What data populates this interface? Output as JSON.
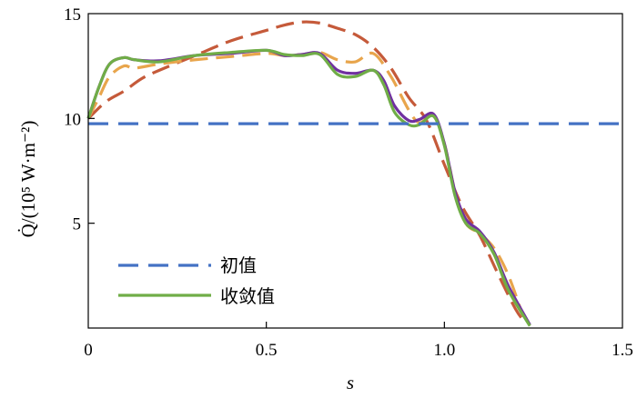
{
  "chart_data": {
    "type": "line",
    "xlabel": "s",
    "ylabel": "Q̇/(10⁵ W·m⁻²)",
    "xlim": [
      0,
      1.5
    ],
    "ylim": [
      0,
      15
    ],
    "xticks": [
      "0",
      "0.5",
      "1.0",
      "1.5"
    ],
    "yticks": [
      "5",
      "10",
      "15"
    ],
    "grid": false,
    "legend_position": "bottom-left",
    "legend": [
      "初值",
      "收敛值"
    ],
    "series": [
      {
        "name": "初值",
        "color": "#4472C4",
        "dash": "dashed",
        "x": [
          0,
          1.5
        ],
        "y": [
          9.75,
          9.75
        ]
      },
      {
        "color": "#C55A3A",
        "dash": "dashed",
        "x": [
          0.0,
          0.05,
          0.1,
          0.15,
          0.2,
          0.3,
          0.4,
          0.5,
          0.55,
          0.6,
          0.65,
          0.7,
          0.75,
          0.8,
          0.85,
          0.9,
          0.95,
          1.0,
          1.05,
          1.1,
          1.15,
          1.2,
          1.23
        ],
        "y": [
          10.0,
          10.8,
          11.3,
          11.9,
          12.3,
          13.0,
          13.7,
          14.2,
          14.45,
          14.6,
          14.55,
          14.3,
          14.0,
          13.4,
          12.4,
          11.0,
          9.9,
          7.8,
          5.8,
          4.4,
          2.6,
          0.9,
          0.2
        ]
      },
      {
        "color": "#E8A54C",
        "dash": "dashed",
        "x": [
          0.0,
          0.03,
          0.06,
          0.1,
          0.13,
          0.2,
          0.3,
          0.4,
          0.5,
          0.55,
          0.6,
          0.65,
          0.7,
          0.75,
          0.8,
          0.85,
          0.9,
          0.93,
          0.97,
          1.0,
          1.03,
          1.06,
          1.1,
          1.14,
          1.18,
          1.22
        ],
        "y": [
          10.0,
          11.0,
          12.0,
          12.5,
          12.4,
          12.6,
          12.8,
          12.95,
          13.1,
          13.0,
          13.05,
          13.15,
          12.8,
          12.7,
          13.1,
          12.0,
          10.4,
          9.8,
          10.1,
          8.8,
          6.5,
          5.0,
          4.5,
          3.8,
          2.5,
          0.6
        ]
      },
      {
        "color": "#7030A0",
        "dash": "solid",
        "x": [
          0.0,
          0.03,
          0.06,
          0.1,
          0.13,
          0.2,
          0.3,
          0.4,
          0.5,
          0.55,
          0.6,
          0.65,
          0.7,
          0.75,
          0.8,
          0.83,
          0.86,
          0.9,
          0.93,
          0.97,
          1.0,
          1.03,
          1.06,
          1.1,
          1.14,
          1.18,
          1.24
        ],
        "y": [
          10.0,
          11.5,
          12.6,
          12.9,
          12.8,
          12.75,
          13.0,
          13.1,
          13.25,
          13.0,
          13.05,
          13.1,
          12.3,
          12.15,
          12.3,
          11.8,
          10.6,
          9.9,
          9.95,
          10.2,
          8.8,
          6.5,
          5.2,
          4.6,
          3.6,
          2.0,
          0.15
        ]
      },
      {
        "name": "收敛值",
        "color": "#70AD47",
        "dash": "solid",
        "x": [
          0.0,
          0.03,
          0.06,
          0.1,
          0.13,
          0.2,
          0.3,
          0.4,
          0.5,
          0.55,
          0.6,
          0.65,
          0.7,
          0.75,
          0.8,
          0.83,
          0.86,
          0.9,
          0.93,
          0.97,
          1.0,
          1.03,
          1.06,
          1.1,
          1.14,
          1.18,
          1.24
        ],
        "y": [
          10.0,
          11.5,
          12.6,
          12.9,
          12.8,
          12.7,
          13.0,
          13.15,
          13.25,
          13.05,
          13.0,
          13.05,
          12.1,
          12.0,
          12.3,
          11.6,
          10.3,
          9.7,
          9.7,
          10.1,
          8.7,
          6.3,
          5.0,
          4.5,
          3.5,
          1.8,
          0.1
        ]
      }
    ]
  }
}
